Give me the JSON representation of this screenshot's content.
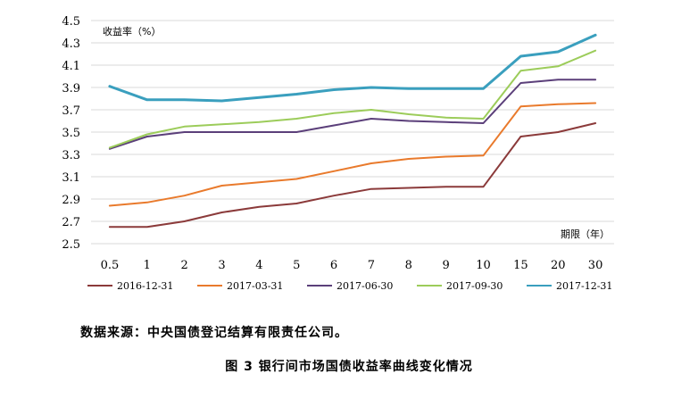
{
  "chart_data": {
    "type": "line",
    "ylabel": "收益率（%）",
    "xlabel": "期限（年）",
    "categories": [
      "0.5",
      "1",
      "2",
      "3",
      "4",
      "5",
      "6",
      "7",
      "8",
      "9",
      "10",
      "15",
      "20",
      "30"
    ],
    "y_ticks": [
      "2.5",
      "2.7",
      "2.9",
      "3.1",
      "3.3",
      "3.5",
      "3.7",
      "3.9",
      "4.1",
      "4.3",
      "4.5"
    ],
    "ylim": [
      2.5,
      4.5
    ],
    "grid": "horizontal",
    "legend_position": "bottom",
    "series": [
      {
        "name": "2016-12-31",
        "color": "#8b3a3a",
        "width": 2,
        "values": [
          2.65,
          2.65,
          2.7,
          2.78,
          2.83,
          2.86,
          2.93,
          2.99,
          3.0,
          3.01,
          3.01,
          3.46,
          3.5,
          3.58
        ]
      },
      {
        "name": "2017-03-31",
        "color": "#e97a2c",
        "width": 2,
        "values": [
          2.84,
          2.87,
          2.93,
          3.02,
          3.05,
          3.08,
          3.15,
          3.22,
          3.26,
          3.28,
          3.29,
          3.73,
          3.75,
          3.76
        ]
      },
      {
        "name": "2017-06-30",
        "color": "#5b3f7a",
        "width": 2,
        "values": [
          3.35,
          3.46,
          3.5,
          3.5,
          3.5,
          3.5,
          3.56,
          3.62,
          3.6,
          3.59,
          3.58,
          3.94,
          3.97,
          3.97
        ]
      },
      {
        "name": "2017-09-30",
        "color": "#9ccc5a",
        "width": 2,
        "values": [
          3.36,
          3.48,
          3.55,
          3.57,
          3.59,
          3.62,
          3.67,
          3.7,
          3.66,
          3.63,
          3.62,
          4.05,
          4.09,
          4.23
        ]
      },
      {
        "name": "2017-12-31",
        "color": "#3a9fbe",
        "width": 3,
        "values": [
          3.91,
          3.79,
          3.79,
          3.78,
          3.81,
          3.84,
          3.88,
          3.9,
          3.89,
          3.89,
          3.89,
          4.18,
          4.22,
          4.37
        ]
      }
    ]
  },
  "source_note": "数据来源：中央国债登记结算有限责任公司。",
  "caption": "图 3 银行间市场国债收益率曲线变化情况"
}
